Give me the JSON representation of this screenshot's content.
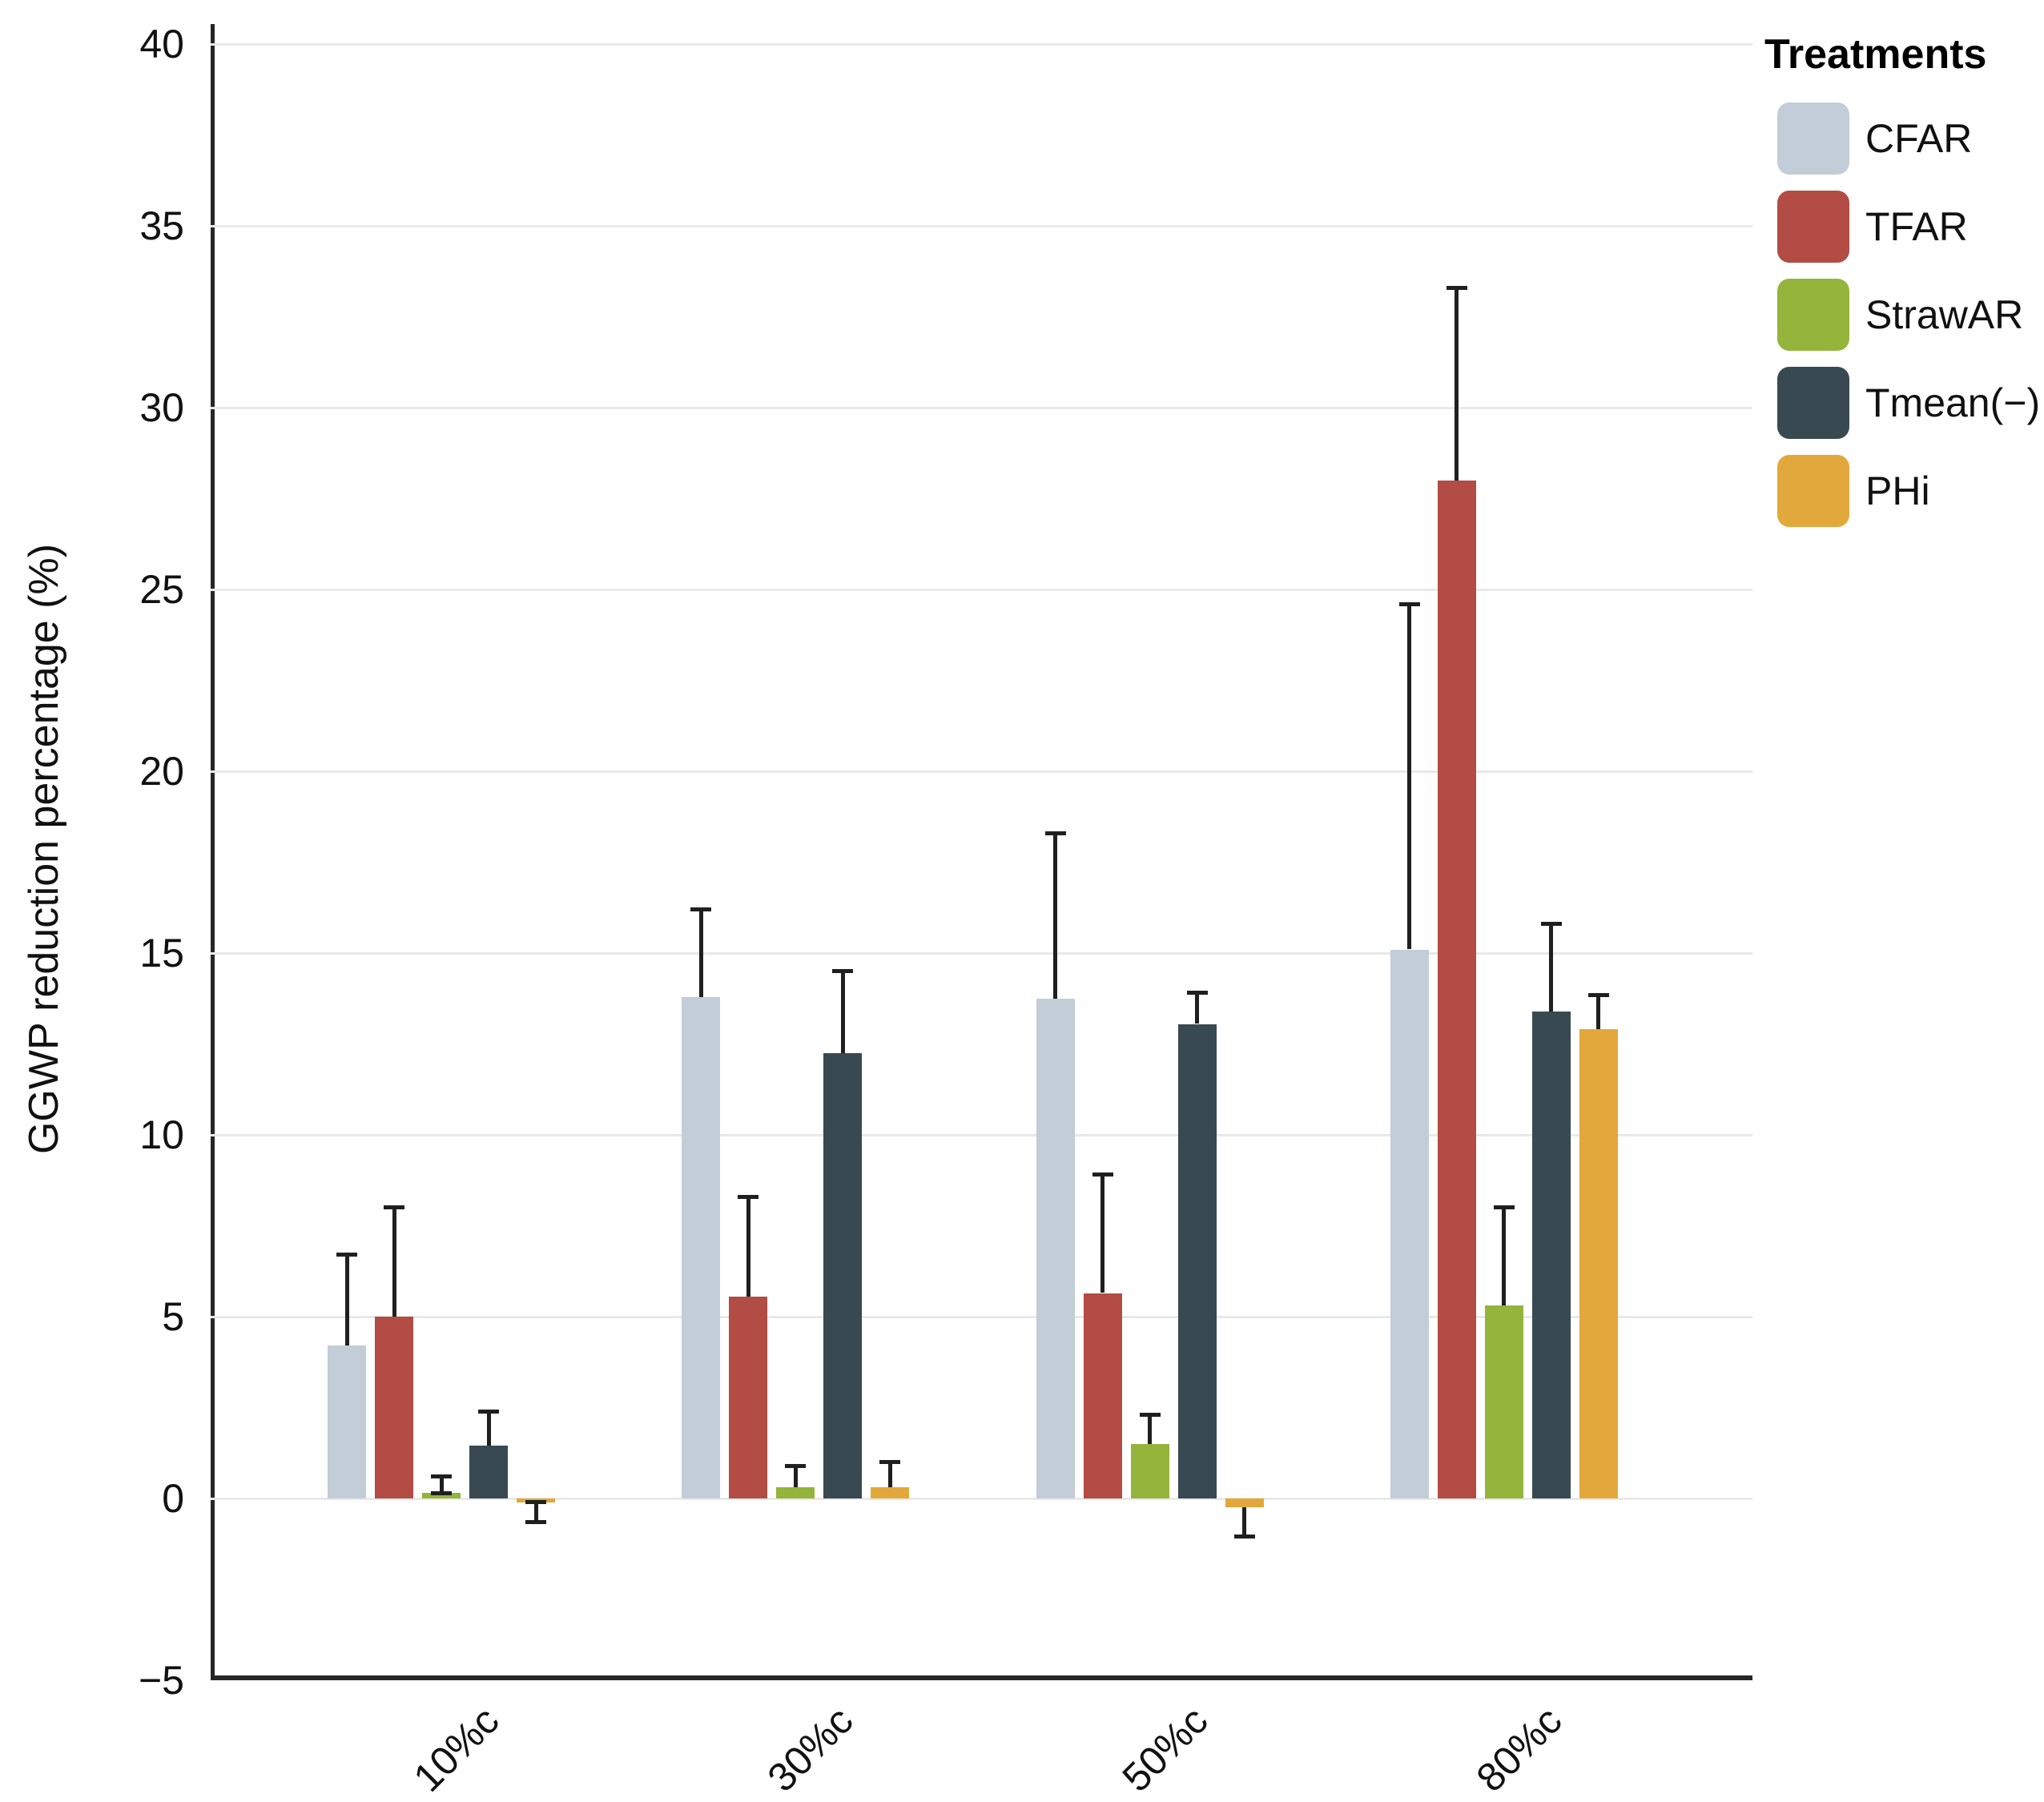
{
  "chart_data": {
    "type": "bar",
    "title": "",
    "xlabel": "",
    "ylabel": "GGWP reduction percentage (%)",
    "ylim": [
      -5,
      40
    ],
    "grid": "horizontal",
    "legend_position": "top-right",
    "legend_title": "Treatments",
    "categories": [
      "10%c",
      "30%c",
      "50%c",
      "80%c"
    ],
    "series": [
      {
        "name": "CFAR",
        "color": "#c2cdd8",
        "values": [
          4.2,
          13.8,
          13.75,
          15.1
        ],
        "err_top": [
          6.7,
          16.2,
          18.3,
          24.6
        ]
      },
      {
        "name": "TFAR",
        "color": "#b24c44",
        "values": [
          5.0,
          5.55,
          5.65,
          28.0
        ],
        "err_top": [
          8.0,
          8.3,
          8.9,
          33.3
        ]
      },
      {
        "name": "StrawAR",
        "color": "#94b43c",
        "values": [
          0.15,
          0.3,
          1.5,
          5.3
        ],
        "err_top": [
          0.6,
          0.9,
          2.3,
          8.0
        ]
      },
      {
        "name": "Tmean(−)",
        "color": "#384951",
        "values": [
          1.45,
          12.25,
          13.05,
          13.4
        ],
        "err_top": [
          2.4,
          14.5,
          13.9,
          15.8
        ]
      },
      {
        "name": "PHi",
        "color": "#e3a83b",
        "values": [
          -0.1,
          0.3,
          -0.25,
          12.9
        ],
        "err_top": [
          -0.65,
          1.0,
          -1.05,
          13.85
        ]
      }
    ]
  },
  "y_axis": {
    "label": "GGWP reduction percentage (%)",
    "ticks": [
      "40",
      "35",
      "30",
      "25",
      "20",
      "15",
      "10",
      "5",
      "0",
      "−5"
    ],
    "tick_values": [
      40,
      35,
      30,
      25,
      20,
      15,
      10,
      5,
      0,
      -5
    ]
  },
  "x_axis": {
    "categories": [
      "10%c",
      "30%c",
      "50%c",
      "80%c"
    ]
  },
  "legend": {
    "title": "Treatments",
    "items": [
      "CFAR",
      "TFAR",
      "StrawAR",
      "Tmean(−)",
      "PHi"
    ]
  },
  "colors": {
    "spine": "#262626",
    "grid": "#e9e9e9",
    "error_bar": "#1f1f1f",
    "background": "#ffffff",
    "text": "#1a1a1a"
  }
}
